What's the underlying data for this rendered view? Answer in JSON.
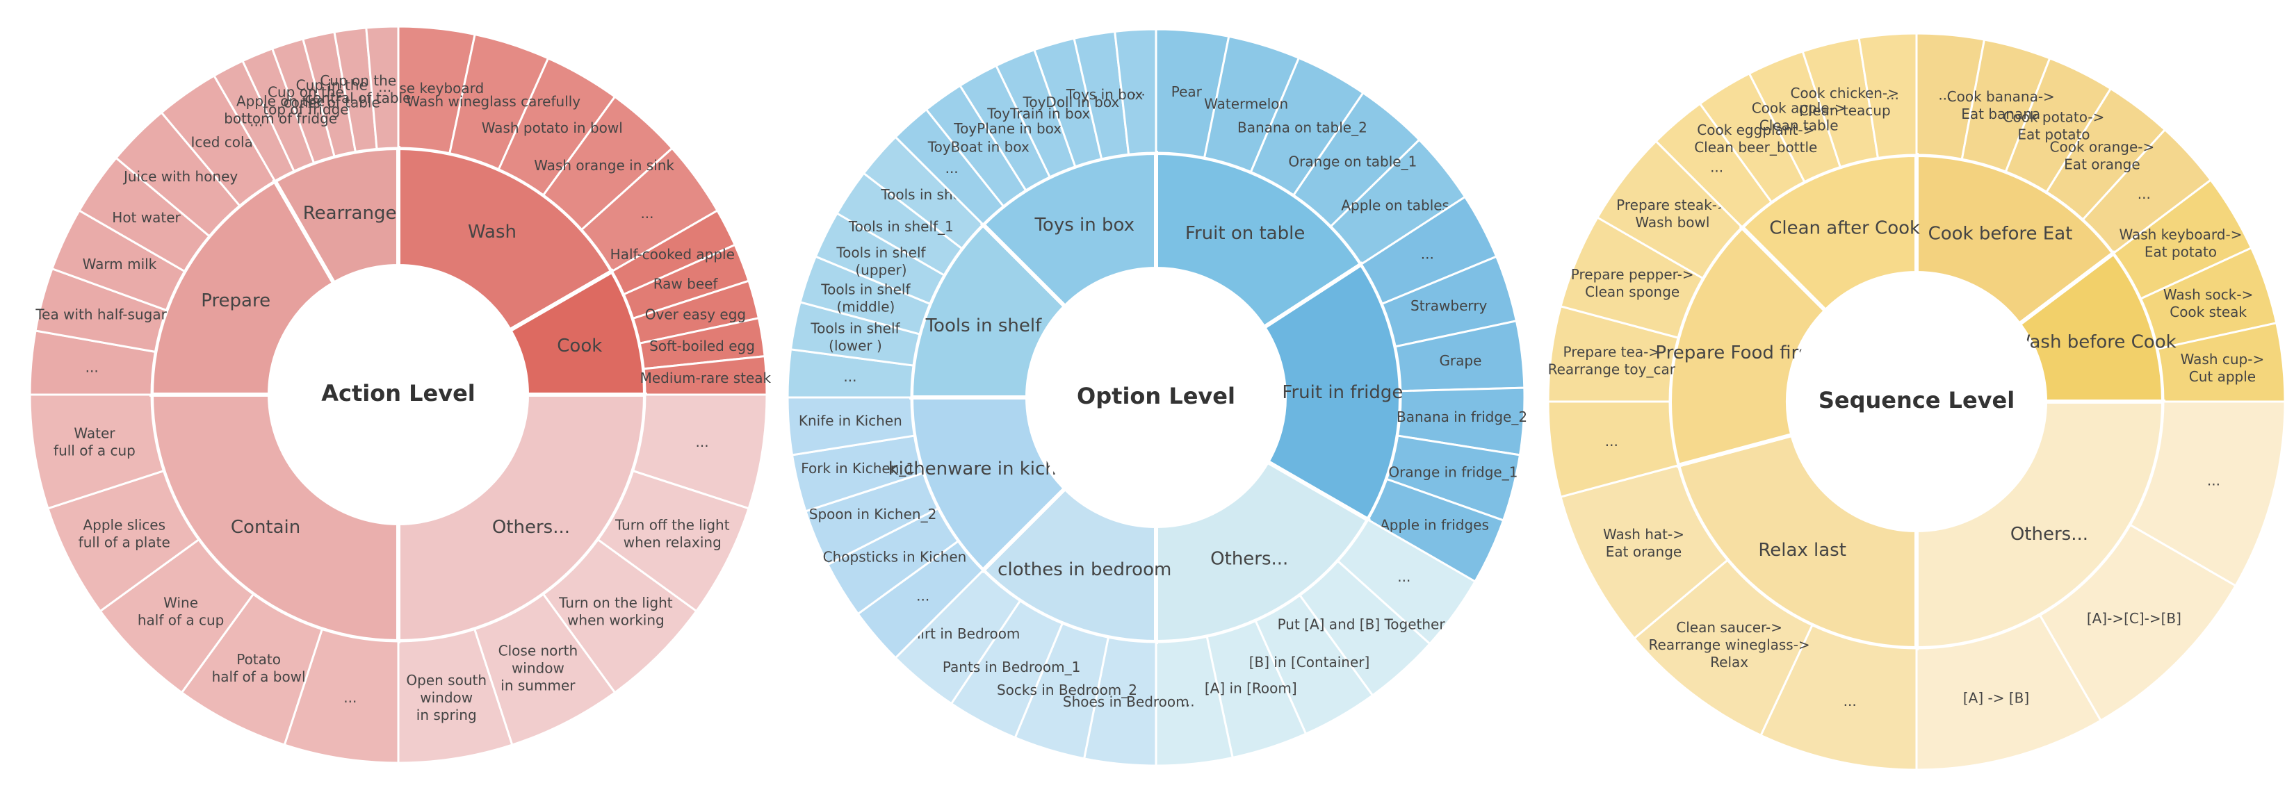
{
  "chart_data": [
    {
      "type": "sunburst",
      "title": "Action Level",
      "level_1": [
        {
          "name": "Wash",
          "color": "#E07B74",
          "children": [
            "Rinse keyboard",
            "Wash wineglass carefully",
            "Wash potato in bowl",
            "Wash orange in sink",
            "..."
          ]
        },
        {
          "name": "Cook",
          "color": "#DD6A61",
          "children": [
            "Half-cooked apple",
            "Raw beef",
            "Over easy egg",
            "Soft-boiled egg",
            "Medium-rare steak"
          ]
        },
        {
          "name": "Others...",
          "color": "#EFC6C6",
          "children": [
            "...",
            "Turn off the light\nwhen relaxing",
            "Turn on the light\nwhen working",
            "Close north\nwindow\nin summer",
            "Open south\nwindow\nin spring"
          ]
        },
        {
          "name": "Contain",
          "color": "#EAAFAD",
          "children": [
            "...",
            "Potato\nhalf of a bowl",
            "Wine\nhalf of a cup",
            "Apple slices\nfull of a plate",
            "Water\nfull of a cup"
          ]
        },
        {
          "name": "Prepare",
          "color": "#E6A09D",
          "children": [
            "...",
            "Tea with half-sugar",
            "Warm milk",
            "Hot water",
            "Juice with honey",
            "Iced cola"
          ]
        },
        {
          "name": "Rearrange",
          "color": "#E5A29F",
          "children": [
            "...",
            "Apple on the\nbottom of fridge",
            "Cup on the\ntop of fridge",
            "Cup in the\nconer of table",
            "Cup on the\ncentral of table",
            "..."
          ]
        }
      ]
    },
    {
      "type": "sunburst",
      "title": "Option Level",
      "level_1": [
        {
          "name": "Fruit on table",
          "color": "#7CC1E4",
          "children": [
            "Pear",
            "Watermelon",
            "Banana on table_2",
            "Orange on table_1",
            "Apple on tables"
          ]
        },
        {
          "name": "Fruit in fridge",
          "color": "#6CB6E0",
          "children": [
            "...",
            "Strawberry",
            "Grape",
            "Banana in fridge_2",
            "Orange in fridge_1",
            "Apple in fridges"
          ]
        },
        {
          "name": "Others...",
          "color": "#D2EAF2",
          "children": [
            "...",
            "Put [A] and [B] Together",
            "[B] in [Container]",
            "[A] in [Room]",
            "..."
          ]
        },
        {
          "name": "clothes in bedroom",
          "color": "#C4E1F2",
          "children": [
            "Shoes in Bedroom",
            "Socks  in Bedroom_2",
            "Pants in Bedroom_1",
            "Shirt in Bedroom"
          ]
        },
        {
          "name": "kichenware in kichen",
          "color": "#AED6F0",
          "children": [
            "...",
            "Chopsticks in Kichen",
            "Spoon in Kichen_2",
            "Fork in Kichen_1",
            "Knife in Kichen"
          ]
        },
        {
          "name": "Tools in shelf",
          "color": "#9ED2EA",
          "children": [
            "...",
            "Tools in shelf\n(lower )",
            "Tools in shelf\n(middle)",
            "Tools in shelf\n(upper)",
            "Tools in shelf_1",
            "Tools in shelf"
          ]
        },
        {
          "name": "Toys in box",
          "color": "#8FCAE8",
          "children": [
            "...",
            "ToyBoat in box",
            "ToyPlane in box",
            "ToyTrain in box",
            "ToyDoll in box",
            "Toys in box",
            "..."
          ]
        }
      ]
    },
    {
      "type": "sunburst",
      "title": "Sequence Level",
      "level_1": [
        {
          "name": "Cook before Eat",
          "color": "#F3D27F",
          "children": [
            "...",
            "Cook banana->\nEat banana",
            "Cook potato->\nEat potato",
            "Cook orange->\nEat orange",
            "..."
          ]
        },
        {
          "name": "Wash before Cook",
          "color": "#F2D06A",
          "children": [
            "Wash keyboard->\nEat potato",
            "Wash sock->\nCook steak",
            "Wash cup->\nCut apple"
          ]
        },
        {
          "name": "Others...",
          "color": "#FAEBC8",
          "children": [
            "...",
            "[A]->[C]->[B]",
            "[A] -> [B]"
          ]
        },
        {
          "name": "Relax last",
          "color": "#F7DFA3",
          "children": [
            "...",
            "Clean saucer->\nRearrange wineglass->\nRelax",
            "Wash hat->\nEat orange"
          ]
        },
        {
          "name": "Prepare Food first",
          "color": "#F6D98D",
          "children": [
            "...",
            "Prepare tea->\nRearrange toy_car",
            "Prepare pepper->\nClean sponge",
            "Prepare steak->\nWash bowl"
          ]
        },
        {
          "name": "Clean after Cook",
          "color": "#F7DA8B",
          "children": [
            "...",
            "Cook eggplant->\nClean beer_bottle",
            "Cook apple->\nClean table",
            "Cook chicken->\nClean teacup",
            "..."
          ]
        }
      ]
    }
  ]
}
